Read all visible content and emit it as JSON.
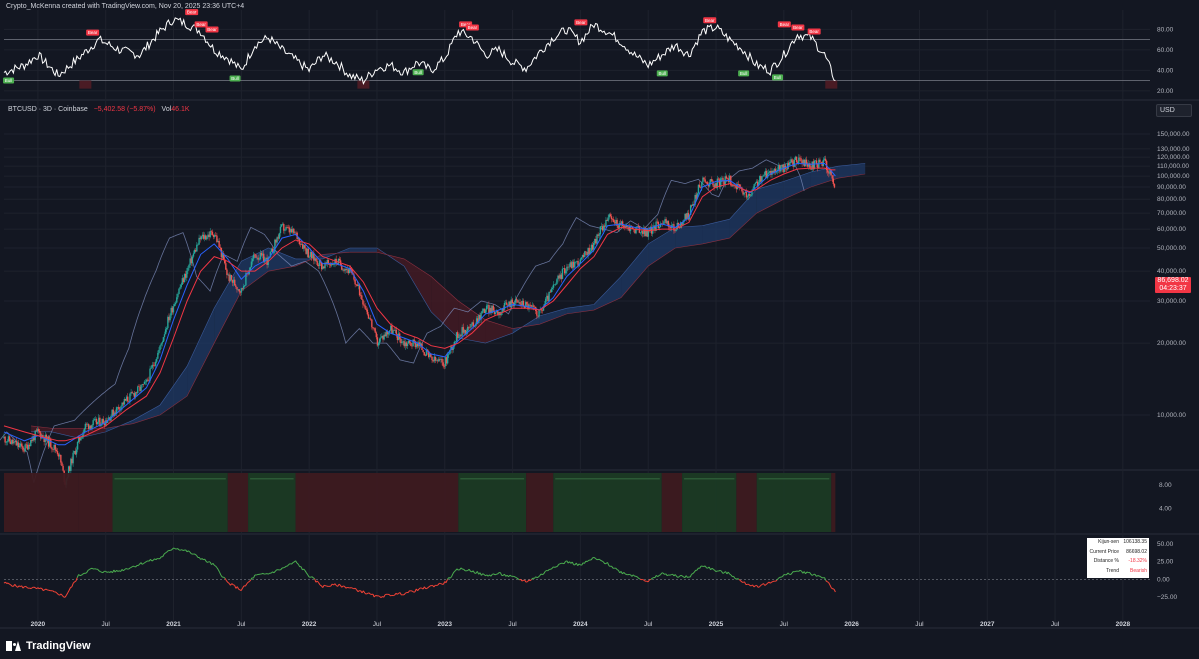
{
  "header": {
    "credit": "Crypto_McKenna created with TradingView.com, Nov 20, 2025 23:36 UTC+4"
  },
  "legend": {
    "symbol": "BTCUSD · 3D · Coinbase",
    "change": "−5,402.58 (−5.87%)",
    "vol_label": "Vol",
    "vol_value": "46.1K"
  },
  "scale_button": "USD",
  "price_tag": {
    "price": "86,698.02",
    "countdown": "04:23:37"
  },
  "brand": "TradingView",
  "info_table": [
    {
      "key": "Kijun-sen",
      "value": "106138.35"
    },
    {
      "key": "Current Price",
      "value": "86698.02"
    },
    {
      "key": "Distance %",
      "value": "-18.32%"
    },
    {
      "key": "Trend",
      "value": "Bearish"
    }
  ],
  "colors": {
    "background": "#131722",
    "grid": "#1e222d",
    "candle_up": "#26a69a",
    "candle_down": "#ef5350",
    "tenkan": "#2962ff",
    "kijun": "#f23645",
    "chikou": "#7b8ab8",
    "cloud_bull": "#1f3a66",
    "cloud_bear": "#4a1b24",
    "oscillator_pos": "#4caf50",
    "oscillator_neg": "#f44336",
    "bull_label": "#4caf50",
    "bear_label": "#f23645"
  },
  "chart_data": [
    {
      "type": "line",
      "panel": "rsi",
      "yticks": [
        "80.00",
        "60.00",
        "40.00",
        "20.00"
      ],
      "ylim": [
        15,
        95
      ],
      "levels": [
        70,
        30
      ],
      "x": [
        2019.75,
        2019.9,
        2020.0,
        2020.15,
        2020.3,
        2020.45,
        2020.6,
        2020.75,
        2020.9,
        2021.0,
        2021.1,
        2021.2,
        2021.3,
        2021.4,
        2021.5,
        2021.6,
        2021.7,
        2021.8,
        2021.9,
        2022.0,
        2022.1,
        2022.2,
        2022.3,
        2022.4,
        2022.5,
        2022.6,
        2022.7,
        2022.8,
        2022.9,
        2023.0,
        2023.1,
        2023.2,
        2023.3,
        2023.4,
        2023.5,
        2023.6,
        2023.7,
        2023.8,
        2023.9,
        2024.0,
        2024.1,
        2024.2,
        2024.3,
        2024.4,
        2024.5,
        2024.6,
        2024.7,
        2024.8,
        2024.9,
        2025.0,
        2025.1,
        2025.2,
        2025.3,
        2025.4,
        2025.5,
        2025.6,
        2025.7,
        2025.8,
        2025.88
      ],
      "values": [
        38,
        45,
        55,
        35,
        52,
        70,
        60,
        55,
        78,
        90,
        85,
        78,
        60,
        52,
        40,
        65,
        72,
        60,
        50,
        40,
        55,
        48,
        35,
        30,
        42,
        45,
        38,
        48,
        40,
        52,
        78,
        72,
        55,
        60,
        48,
        42,
        58,
        72,
        80,
        68,
        85,
        78,
        68,
        55,
        45,
        55,
        65,
        55,
        78,
        82,
        70,
        60,
        45,
        40,
        55,
        75,
        72,
        55,
        30
      ],
      "bull_labels": [
        {
          "x": 2019.78,
          "y": 35,
          "text": "Bull"
        },
        {
          "x": 2021.45,
          "y": 37,
          "text": "Bull"
        },
        {
          "x": 2022.8,
          "y": 43,
          "text": "Bull"
        },
        {
          "x": 2024.6,
          "y": 42,
          "text": "Bull"
        },
        {
          "x": 2025.2,
          "y": 42,
          "text": "Bull"
        },
        {
          "x": 2025.45,
          "y": 38,
          "text": "Bull"
        }
      ],
      "bear_labels": [
        {
          "x": 2020.4,
          "y": 72,
          "text": "Bear"
        },
        {
          "x": 2021.13,
          "y": 92,
          "text": "Bear"
        },
        {
          "x": 2021.2,
          "y": 80,
          "text": "Bear"
        },
        {
          "x": 2021.28,
          "y": 75,
          "text": "Bear"
        },
        {
          "x": 2023.15,
          "y": 80,
          "text": "Bear"
        },
        {
          "x": 2023.2,
          "y": 77,
          "text": "Bear"
        },
        {
          "x": 2024.0,
          "y": 82,
          "text": "Bear"
        },
        {
          "x": 2024.95,
          "y": 84,
          "text": "Bear"
        },
        {
          "x": 2025.5,
          "y": 80,
          "text": "Bear"
        },
        {
          "x": 2025.6,
          "y": 77,
          "text": "Bear"
        },
        {
          "x": 2025.72,
          "y": 73,
          "text": "Bear"
        }
      ]
    },
    {
      "type": "line",
      "panel": "price",
      "title": "BTCUSD · 3D · Coinbase",
      "yticks": [
        "150,000.00",
        "130,000.00",
        "120,000.00",
        "110,000.00",
        "100,000.00",
        "90,000.00",
        "80,000.00",
        "70,000.00",
        "60,000.00",
        "50,000.00",
        "40,000.00",
        "30,000.00",
        "20,000.00",
        "10,000.00"
      ],
      "ytick_values": [
        150000,
        130000,
        120000,
        110000,
        100000,
        90000,
        80000,
        70000,
        60000,
        50000,
        40000,
        30000,
        20000,
        10000
      ],
      "x": [
        2019.75,
        2019.9,
        2020.0,
        2020.15,
        2020.2,
        2020.35,
        2020.5,
        2020.65,
        2020.8,
        2020.9,
        2021.0,
        2021.1,
        2021.2,
        2021.3,
        2021.4,
        2021.5,
        2021.6,
        2021.7,
        2021.8,
        2021.9,
        2022.0,
        2022.1,
        2022.2,
        2022.3,
        2022.4,
        2022.5,
        2022.6,
        2022.7,
        2022.8,
        2022.9,
        2023.0,
        2023.1,
        2023.2,
        2023.3,
        2023.4,
        2023.5,
        2023.6,
        2023.7,
        2023.8,
        2023.9,
        2024.0,
        2024.1,
        2024.2,
        2024.3,
        2024.4,
        2024.5,
        2024.6,
        2024.7,
        2024.8,
        2024.9,
        2025.0,
        2025.1,
        2025.2,
        2025.25,
        2025.3,
        2025.4,
        2025.5,
        2025.6,
        2025.7,
        2025.8,
        2025.85,
        2025.88
      ],
      "close": [
        8000,
        7200,
        8500,
        7000,
        5200,
        9000,
        9500,
        11500,
        13500,
        19000,
        29000,
        40000,
        55000,
        58000,
        38000,
        33000,
        47000,
        44000,
        61000,
        57000,
        47000,
        42000,
        44000,
        40000,
        30000,
        20000,
        23000,
        20000,
        20000,
        17000,
        16500,
        22000,
        23500,
        28000,
        27000,
        30000,
        29000,
        26500,
        34000,
        42000,
        44000,
        52000,
        67000,
        62000,
        60000,
        58000,
        65000,
        60000,
        69000,
        96000,
        93000,
        97000,
        84000,
        82000,
        94000,
        105000,
        108000,
        117000,
        110000,
        115000,
        100000,
        86698
      ],
      "tenkan": [
        8500,
        7800,
        8200,
        7500,
        7500,
        8500,
        9300,
        11000,
        13000,
        17000,
        25000,
        35000,
        47000,
        52000,
        45000,
        37000,
        42000,
        45000,
        55000,
        57000,
        50000,
        43000,
        43000,
        41000,
        33000,
        24000,
        22000,
        21000,
        20000,
        18000,
        17500,
        20500,
        23000,
        26500,
        27500,
        29000,
        28500,
        27500,
        31000,
        38000,
        43000,
        49000,
        62000,
        63000,
        61000,
        60000,
        63000,
        61000,
        67000,
        90000,
        95000,
        96000,
        88000,
        85000,
        90000,
        102000,
        108000,
        113000,
        112000,
        113000,
        105000,
        100000
      ],
      "kijun": [
        9000,
        8500,
        8200,
        7800,
        7800,
        8200,
        9000,
        10500,
        12000,
        15000,
        21000,
        30000,
        40000,
        46000,
        44000,
        40000,
        40000,
        44000,
        50000,
        54000,
        52000,
        46000,
        44000,
        42000,
        36000,
        28000,
        24000,
        22000,
        21000,
        19500,
        19000,
        20000,
        22000,
        25000,
        26500,
        28000,
        28000,
        27500,
        30000,
        35000,
        41000,
        46000,
        57000,
        61000,
        60000,
        59000,
        60000,
        60000,
        64000,
        82000,
        90000,
        93000,
        88000,
        86000,
        88000,
        96000,
        102000,
        107000,
        108000,
        108000,
        106138,
        106138
      ],
      "chikou_shift": -0.23,
      "cloud_x": [
        2019.95,
        2020.1,
        2020.3,
        2020.5,
        2020.7,
        2020.9,
        2021.1,
        2021.3,
        2021.5,
        2021.7,
        2021.9,
        2022.1,
        2022.3,
        2022.5,
        2022.7,
        2022.9,
        2023.1,
        2023.3,
        2023.5,
        2023.7,
        2023.9,
        2024.1,
        2024.3,
        2024.5,
        2024.7,
        2024.9,
        2025.1,
        2025.3,
        2025.5,
        2025.7,
        2025.9,
        2026.1
      ],
      "span_a": [
        8500,
        8500,
        8000,
        8500,
        9500,
        11000,
        16000,
        28000,
        44000,
        50000,
        45000,
        45000,
        50000,
        50000,
        42000,
        27000,
        21000,
        20000,
        22000,
        26000,
        28000,
        29000,
        38000,
        52000,
        61000,
        62000,
        66000,
        88000,
        95000,
        104000,
        110000,
        113000
      ],
      "span_b": [
        9000,
        8800,
        8800,
        8800,
        9200,
        10000,
        12000,
        20000,
        33000,
        40000,
        42000,
        47000,
        48000,
        48000,
        45000,
        38000,
        30000,
        25000,
        23000,
        24000,
        26500,
        27500,
        31000,
        42000,
        50000,
        52000,
        55000,
        70000,
        80000,
        90000,
        98000,
        102000
      ],
      "xlim": [
        2019.75,
        2028.2
      ],
      "ylim_log": [
        6000,
        175000
      ]
    },
    {
      "type": "area",
      "panel": "regime",
      "yticks": [
        "8.00",
        "4.00"
      ],
      "ylim": [
        0,
        10
      ],
      "segments": [
        {
          "from": 2019.75,
          "to": 2020.3,
          "state": "bear"
        },
        {
          "from": 2020.3,
          "to": 2020.55,
          "state": "bear"
        },
        {
          "from": 2020.55,
          "to": 2021.4,
          "state": "bull"
        },
        {
          "from": 2021.4,
          "to": 2021.55,
          "state": "bear"
        },
        {
          "from": 2021.55,
          "to": 2021.9,
          "state": "bull"
        },
        {
          "from": 2021.9,
          "to": 2023.1,
          "state": "bear"
        },
        {
          "from": 2023.1,
          "to": 2023.6,
          "state": "bull"
        },
        {
          "from": 2023.6,
          "to": 2023.8,
          "state": "bear"
        },
        {
          "from": 2023.8,
          "to": 2024.6,
          "state": "bull"
        },
        {
          "from": 2024.6,
          "to": 2024.75,
          "state": "bear"
        },
        {
          "from": 2024.75,
          "to": 2025.15,
          "state": "bull"
        },
        {
          "from": 2025.15,
          "to": 2025.3,
          "state": "bear"
        },
        {
          "from": 2025.3,
          "to": 2025.85,
          "state": "bull"
        },
        {
          "from": 2025.85,
          "to": 2025.88,
          "state": "bear"
        }
      ]
    },
    {
      "type": "line",
      "panel": "oscillator",
      "yticks": [
        "50.00",
        "25.00",
        "0.00",
        "−25.00"
      ],
      "ylim": [
        -35,
        60
      ],
      "x": [
        2019.75,
        2019.85,
        2019.95,
        2020.05,
        2020.15,
        2020.2,
        2020.3,
        2020.4,
        2020.5,
        2020.6,
        2020.7,
        2020.8,
        2020.9,
        2021.0,
        2021.1,
        2021.2,
        2021.3,
        2021.4,
        2021.5,
        2021.6,
        2021.7,
        2021.8,
        2021.9,
        2022.0,
        2022.1,
        2022.2,
        2022.3,
        2022.4,
        2022.5,
        2022.6,
        2022.7,
        2022.8,
        2022.9,
        2023.0,
        2023.1,
        2023.2,
        2023.3,
        2023.4,
        2023.5,
        2023.6,
        2023.7,
        2023.8,
        2023.9,
        2024.0,
        2024.1,
        2024.2,
        2024.3,
        2024.4,
        2024.5,
        2024.6,
        2024.7,
        2024.8,
        2024.9,
        2025.0,
        2025.1,
        2025.2,
        2025.3,
        2025.4,
        2025.5,
        2025.6,
        2025.7,
        2025.8,
        2025.88
      ],
      "values": [
        -5,
        -10,
        -12,
        -15,
        -20,
        -25,
        5,
        15,
        10,
        12,
        18,
        25,
        30,
        45,
        40,
        30,
        20,
        -5,
        -15,
        5,
        8,
        15,
        25,
        5,
        -10,
        -8,
        -12,
        -18,
        -25,
        -22,
        -20,
        -15,
        -10,
        -5,
        15,
        12,
        5,
        8,
        3,
        -3,
        5,
        18,
        25,
        20,
        30,
        22,
        10,
        5,
        -3,
        8,
        5,
        3,
        20,
        12,
        8,
        -5,
        -10,
        -5,
        5,
        12,
        8,
        2,
        -18
      ]
    }
  ],
  "x_axis": {
    "labels": [
      {
        "x": 2020.0,
        "text": "2020",
        "bold": true
      },
      {
        "x": 2020.5,
        "text": "Jul",
        "bold": false
      },
      {
        "x": 2021.0,
        "text": "2021",
        "bold": true
      },
      {
        "x": 2021.5,
        "text": "Jul",
        "bold": false
      },
      {
        "x": 2022.0,
        "text": "2022",
        "bold": true
      },
      {
        "x": 2022.5,
        "text": "Jul",
        "bold": false
      },
      {
        "x": 2023.0,
        "text": "2023",
        "bold": true
      },
      {
        "x": 2023.5,
        "text": "Jul",
        "bold": false
      },
      {
        "x": 2024.0,
        "text": "2024",
        "bold": true
      },
      {
        "x": 2024.5,
        "text": "Jul",
        "bold": false
      },
      {
        "x": 2025.0,
        "text": "2025",
        "bold": true
      },
      {
        "x": 2025.5,
        "text": "Jul",
        "bold": false
      },
      {
        "x": 2026.0,
        "text": "2026",
        "bold": true
      },
      {
        "x": 2026.5,
        "text": "Jul",
        "bold": false
      },
      {
        "x": 2027.0,
        "text": "2027",
        "bold": true
      },
      {
        "x": 2027.5,
        "text": "Jul",
        "bold": false
      },
      {
        "x": 2028.0,
        "text": "2028",
        "bold": true
      }
    ]
  }
}
